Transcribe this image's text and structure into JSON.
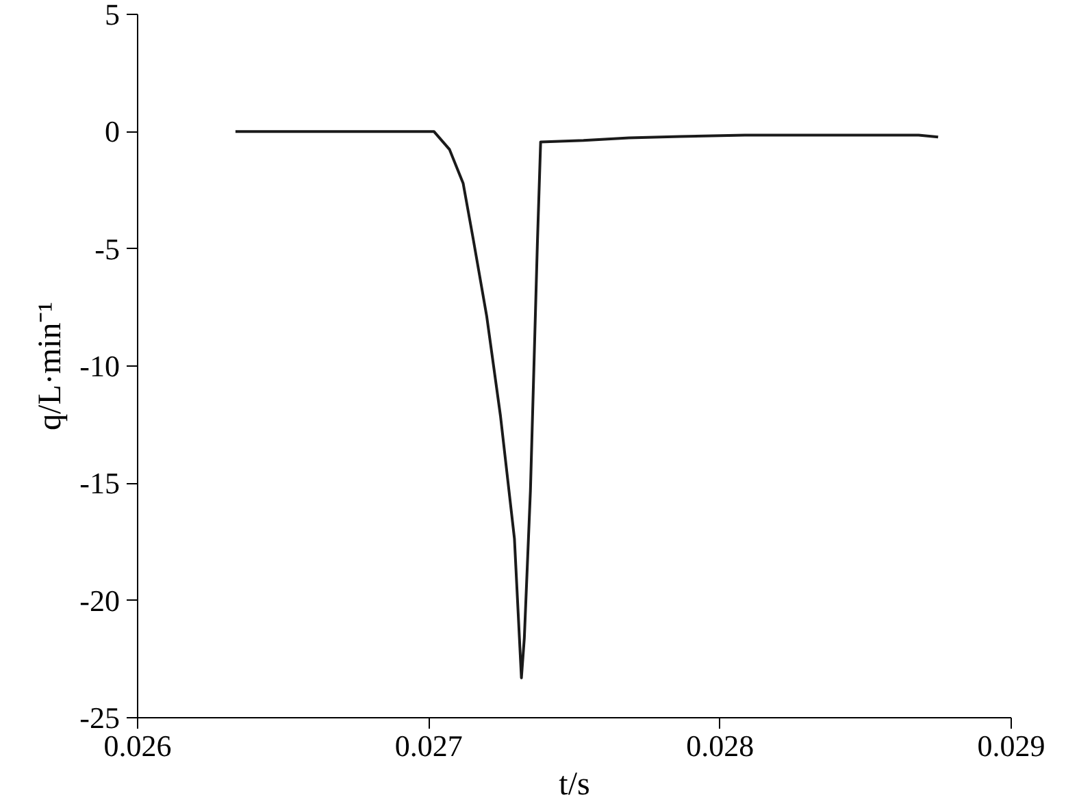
{
  "chart_data": {
    "type": "line",
    "xlabel": "t/s",
    "ylabel": "q/L·min⁻¹",
    "xlim": [
      0.026,
      0.029
    ],
    "ylim": [
      -25,
      5
    ],
    "xticks": [
      0.026,
      0.027,
      0.028,
      0.029
    ],
    "yticks": [
      -25,
      -20,
      -15,
      -10,
      -5,
      0,
      5
    ],
    "grid": false,
    "marker": "none",
    "line_style": "solid",
    "series": [
      {
        "color": "#1a1a1a",
        "x": [
          0.026336,
          0.027018,
          0.027071,
          0.027118,
          0.027152,
          0.027199,
          0.027246,
          0.027294,
          0.027318,
          0.027328,
          0.027349,
          0.027373,
          0.027384,
          0.027531,
          0.027687,
          0.027863,
          0.028085,
          0.028682,
          0.028749
        ],
        "values": [
          0,
          0,
          -0.76,
          -2.21,
          -4.55,
          -7.89,
          -12.12,
          -17.36,
          -23.3,
          -21.6,
          -15.3,
          -4.7,
          -0.44,
          -0.38,
          -0.27,
          -0.21,
          -0.15,
          -0.15,
          -0.23
        ]
      }
    ]
  }
}
